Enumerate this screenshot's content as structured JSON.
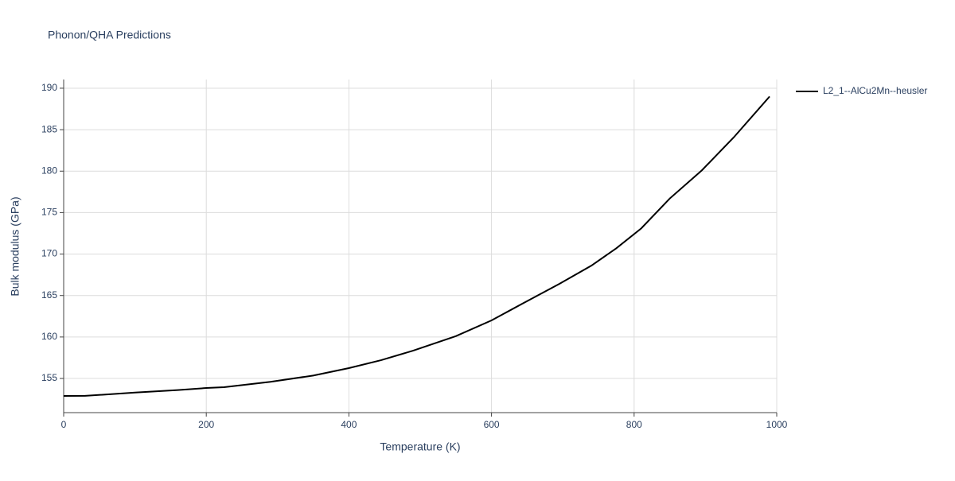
{
  "chart_data": {
    "type": "line",
    "title": "Phonon/QHA Predictions",
    "x_label": "Temperature (K)",
    "y_label": "Bulk modulus (GPa)",
    "x": [
      0,
      30,
      100,
      160,
      200,
      225,
      290,
      350,
      400,
      445,
      490,
      550,
      600,
      645,
      695,
      740,
      775,
      810,
      850,
      895,
      940,
      990
    ],
    "series": [
      {
        "name": "L2_1--AlCu2Mn--heusler",
        "color": "#000000",
        "values": [
          152.89,
          152.9,
          153.3,
          153.6,
          153.85,
          153.95,
          154.6,
          155.35,
          156.25,
          157.2,
          158.35,
          160.1,
          162.0,
          164.1,
          166.4,
          168.6,
          170.7,
          173.1,
          176.7,
          180.1,
          184.1,
          189.0
        ]
      }
    ],
    "xlim": [
      0,
      1000
    ],
    "xticks": [
      0,
      200,
      400,
      600,
      800,
      1000
    ],
    "ylim": [
      150.88,
      191.05
    ],
    "yticks": [
      155,
      160,
      165,
      170,
      175,
      180,
      185,
      190
    ],
    "grid": true,
    "legend": "right"
  }
}
